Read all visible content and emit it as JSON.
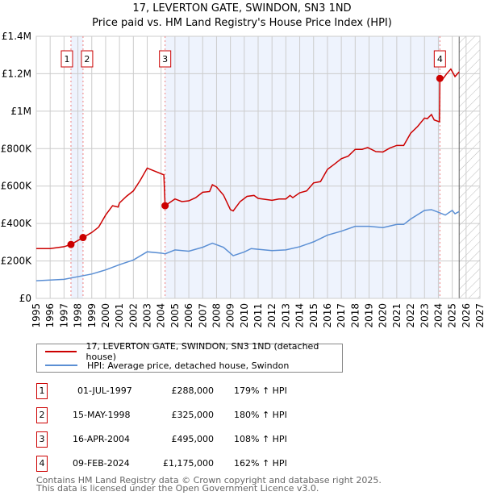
{
  "chart_data": {
    "type": "line",
    "title": "17, LEVERTON GATE, SWINDON, SN3 1ND",
    "subtitle": "Price paid vs. HM Land Registry's House Price Index (HPI)",
    "xlim": [
      1995,
      2027
    ],
    "ylim": [
      0,
      1400000
    ],
    "x_ticks": [
      "1995",
      "1996",
      "1997",
      "1998",
      "1999",
      "2000",
      "2001",
      "2002",
      "2003",
      "2004",
      "2005",
      "2006",
      "2007",
      "2008",
      "2009",
      "2010",
      "2011",
      "2012",
      "2013",
      "2014",
      "2015",
      "2016",
      "2017",
      "2018",
      "2019",
      "2020",
      "2021",
      "2022",
      "2023",
      "2024",
      "2025",
      "2026",
      "2027"
    ],
    "y_ticks": [
      {
        "v": 0,
        "label": "£0"
      },
      {
        "v": 200000,
        "label": "£200K"
      },
      {
        "v": 400000,
        "label": "£400K"
      },
      {
        "v": 600000,
        "label": "£600K"
      },
      {
        "v": 800000,
        "label": "£800K"
      },
      {
        "v": 1000000,
        "label": "£1M"
      },
      {
        "v": 1200000,
        "label": "£1.2M"
      },
      {
        "v": 1400000,
        "label": "£1.4M"
      }
    ],
    "grid": true,
    "shaded_ranges": [
      [
        1997.5,
        1998.37
      ],
      [
        2004.29,
        2024.11
      ]
    ],
    "hatched_from": 2025.5,
    "series": [
      {
        "name": "17, LEVERTON GATE, SWINDON, SN3 1ND (detached house)",
        "color": "#cc0000",
        "x": [
          1995,
          1996,
          1997,
          1997.5,
          1998.37,
          1999,
          1999.5,
          2000,
          2000.5,
          2000.9,
          2001,
          2001.5,
          2002,
          2002.5,
          2003,
          2003.5,
          2004.2,
          2004.29,
          2005,
          2005.5,
          2006,
          2006.5,
          2007,
          2007.5,
          2007.7,
          2008,
          2008.5,
          2009,
          2009.2,
          2009.7,
          2010.2,
          2010.7,
          2011,
          2012,
          2012.5,
          2013,
          2013.3,
          2013.5,
          2014,
          2014.5,
          2015,
          2015.5,
          2016,
          2016.5,
          2017,
          2017.5,
          2018,
          2018.5,
          2018.9,
          2019.5,
          2020,
          2020.5,
          2021,
          2021.5,
          2022,
          2022.5,
          2023,
          2023.2,
          2023.5,
          2023.7,
          2024.08,
          2024.11,
          2024.3,
          2024.6,
          2024.9,
          2025.2,
          2025.5
        ],
        "y": [
          266000,
          266000,
          276000,
          288000,
          325000,
          352000,
          381000,
          445000,
          495000,
          488000,
          510000,
          545000,
          574000,
          631000,
          696000,
          681000,
          660000,
          495000,
          531000,
          517000,
          521000,
          538000,
          567000,
          571000,
          607000,
          595000,
          552000,
          474000,
          467000,
          517000,
          545000,
          550000,
          534000,
          524000,
          531000,
          531000,
          550000,
          538000,
          564000,
          574000,
          617000,
          624000,
          689000,
          717000,
          746000,
          760000,
          796000,
          796000,
          806000,
          784000,
          782000,
          803000,
          817000,
          817000,
          882000,
          918000,
          963000,
          960000,
          982000,
          953000,
          943000,
          1175000,
          1170000,
          1200000,
          1225000,
          1185000,
          1210000
        ]
      },
      {
        "name": "HPI: Average price, detached house, Swindon",
        "color": "#5b8fd4",
        "x": [
          1995,
          1997,
          1998,
          1999,
          2000,
          2001,
          2002,
          2003,
          2004,
          2004.3,
          2005,
          2006,
          2007,
          2007.7,
          2008.5,
          2009.2,
          2010,
          2010.5,
          2011,
          2012,
          2013,
          2014,
          2015,
          2016,
          2017,
          2018,
          2019,
          2020,
          2021,
          2021.5,
          2022,
          2023,
          2023.5,
          2024,
          2024.5,
          2025,
          2025.2,
          2025.5
        ],
        "y": [
          94000,
          102000,
          116000,
          130000,
          152000,
          180000,
          205000,
          249000,
          242000,
          238000,
          259000,
          252000,
          273000,
          295000,
          273000,
          228000,
          248000,
          266000,
          262000,
          255000,
          259000,
          276000,
          302000,
          338000,
          359000,
          385000,
          385000,
          378000,
          395000,
          395000,
          424000,
          470000,
          474000,
          460000,
          445000,
          470000,
          452000,
          464000
        ]
      }
    ],
    "sales": [
      {
        "n": "1",
        "x": 1997.5,
        "y": 288000
      },
      {
        "n": "2",
        "x": 1998.37,
        "y": 325000
      },
      {
        "n": "3",
        "x": 2004.29,
        "y": 495000
      },
      {
        "n": "4",
        "x": 2024.11,
        "y": 1175000
      }
    ],
    "legend_placement": "below"
  },
  "table": [
    {
      "n": "1",
      "date": "01-JUL-1997",
      "price": "£288,000",
      "hpi": "179% ↑ HPI"
    },
    {
      "n": "2",
      "date": "15-MAY-1998",
      "price": "£325,000",
      "hpi": "180% ↑ HPI"
    },
    {
      "n": "3",
      "date": "16-APR-2004",
      "price": "£495,000",
      "hpi": "108% ↑ HPI"
    },
    {
      "n": "4",
      "date": "09-FEB-2024",
      "price": "£1,175,000",
      "hpi": "162% ↑ HPI"
    }
  ],
  "footer": {
    "line1": "Contains HM Land Registry data © Crown copyright and database right 2025.",
    "line2": "This data is licensed under the Open Government Licence v3.0."
  }
}
